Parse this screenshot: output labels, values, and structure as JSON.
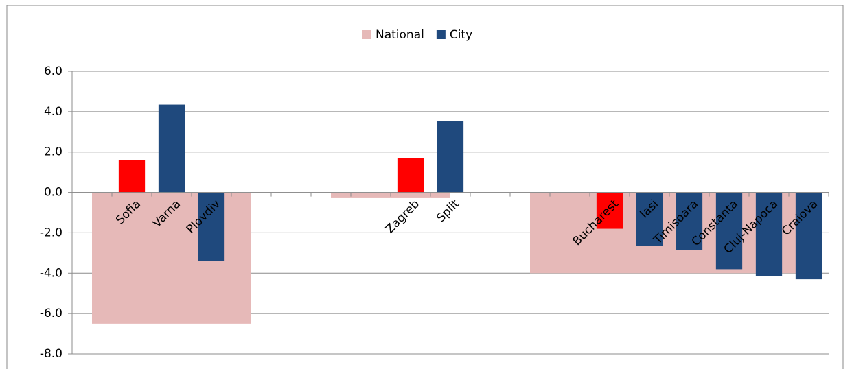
{
  "chart_data": {
    "type": "bar",
    "categories": [
      null,
      "Sofia",
      "Varna",
      "Plovdiv",
      null,
      null,
      null,
      null,
      "Zagreb",
      "Split",
      null,
      null,
      null,
      "Bucharest",
      "Iasi",
      "Timisoara",
      "Constanta",
      "Cluj-Napoca",
      "Craiova"
    ],
    "series": [
      {
        "name": "National",
        "color": "#e6b9b8",
        "values": [
          -6.5,
          -6.5,
          -6.5,
          -6.5,
          -6.5,
          null,
          -0.25,
          -0.25,
          -0.25,
          -0.25,
          null,
          -4.0,
          -4.0,
          -4.0,
          -4.0,
          -4.0,
          -4.0,
          -4.0,
          -4.0
        ]
      },
      {
        "name": "City",
        "color": "#1f497d",
        "highlight_color": "#ff0000",
        "highlight": [
          1,
          8,
          13
        ],
        "values": [
          null,
          1.6,
          4.35,
          -3.4,
          null,
          null,
          null,
          null,
          1.7,
          3.55,
          null,
          null,
          null,
          -1.8,
          -2.65,
          -2.85,
          -3.8,
          -4.15,
          -4.3
        ]
      }
    ],
    "ylim": [
      -8,
      6
    ],
    "yticks": [
      {
        "value": -8,
        "label": "-8.0"
      },
      {
        "value": -6,
        "label": "-6.0"
      },
      {
        "value": -4,
        "label": "-4.0"
      },
      {
        "value": -2,
        "label": "-2.0"
      },
      {
        "value": 0,
        "label": "0.0"
      },
      {
        "value": 2,
        "label": "2.0"
      },
      {
        "value": 4,
        "label": "4.0"
      },
      {
        "value": 6,
        "label": "6.0"
      }
    ],
    "grid": true,
    "legend": "top"
  }
}
